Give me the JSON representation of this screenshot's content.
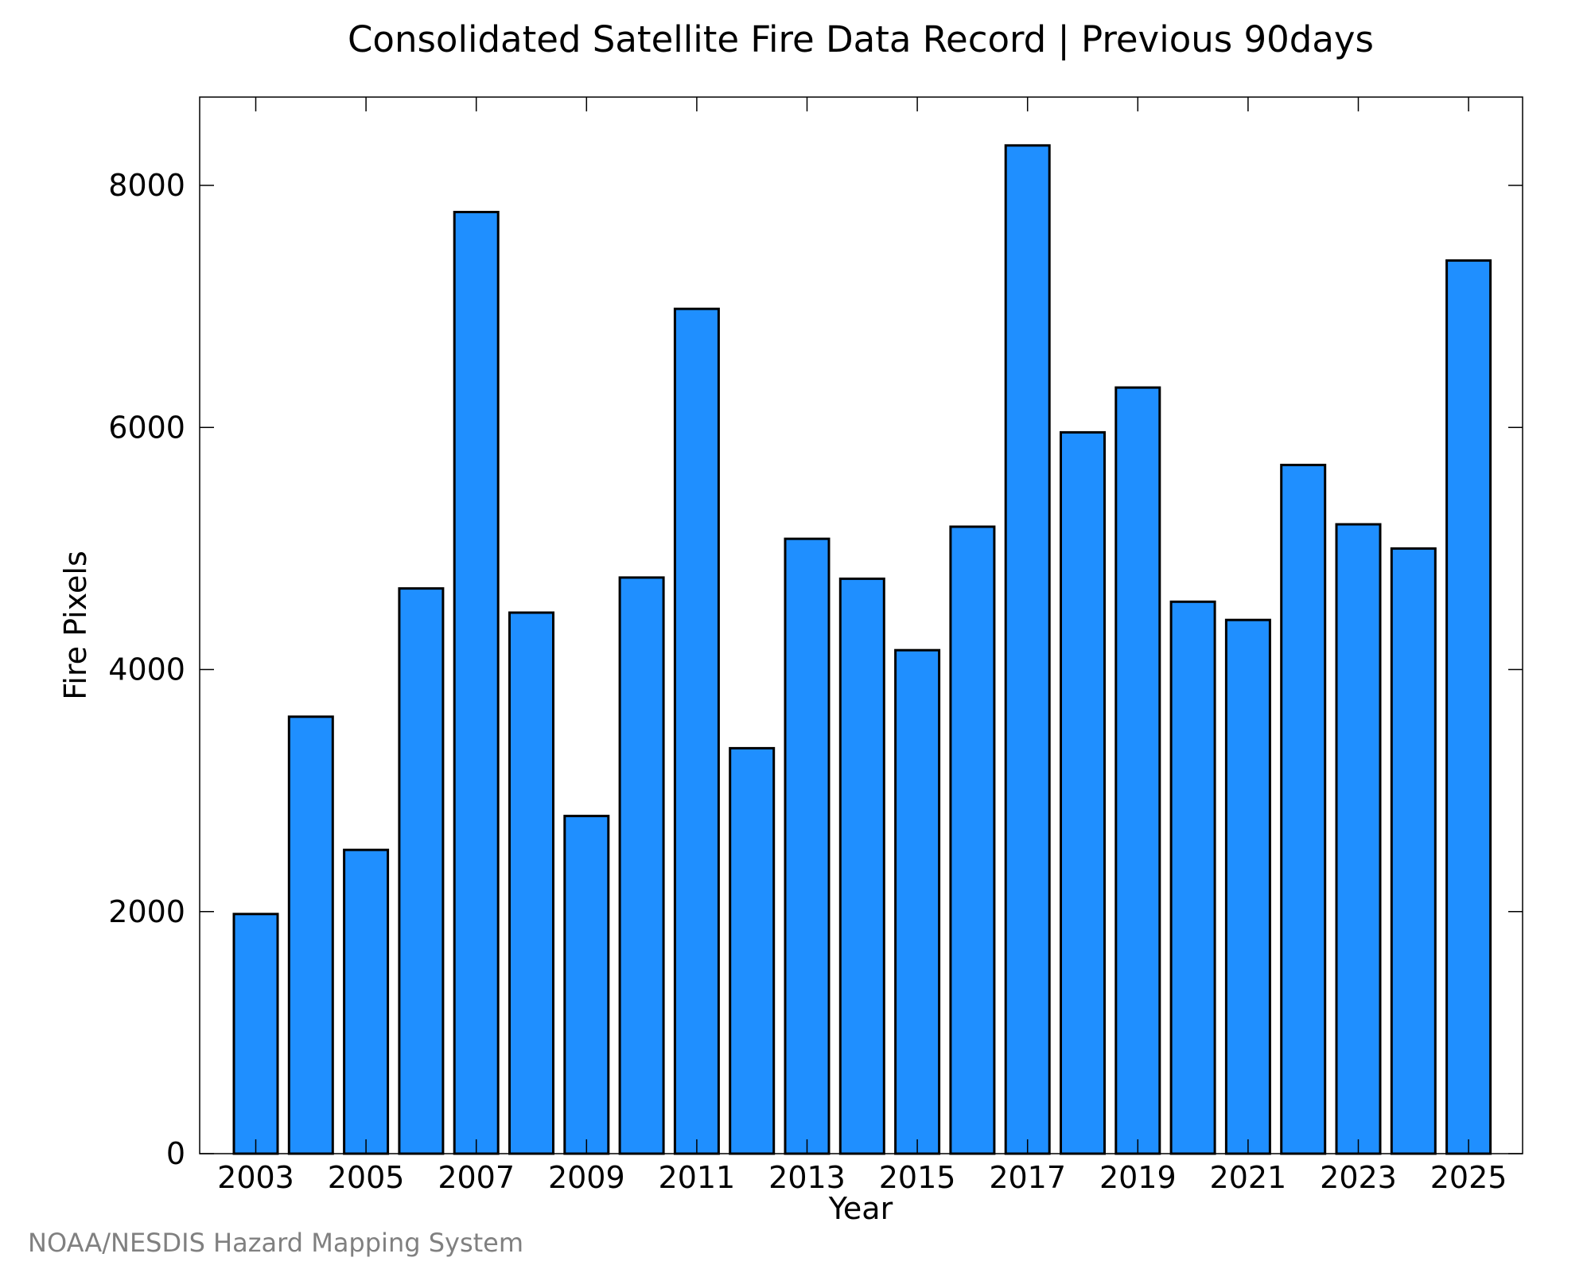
{
  "colors": {
    "bar_fill": "#1f8fff",
    "bar_stroke": "#000000",
    "axis": "#000000",
    "credit_text": "#808080"
  },
  "credit": "NOAA/NESDIS Hazard Mapping System",
  "chart_data": {
    "type": "bar",
    "title": "Consolidated Satellite Fire Data Record | Previous 90days",
    "xlabel": "Year",
    "ylabel": "Fire Pixels",
    "categories": [
      "2003",
      "2004",
      "2005",
      "2006",
      "2007",
      "2008",
      "2009",
      "2010",
      "2011",
      "2012",
      "2013",
      "2014",
      "2015",
      "2016",
      "2017",
      "2018",
      "2019",
      "2020",
      "2021",
      "2022",
      "2023",
      "2024",
      "2025"
    ],
    "values": [
      1980,
      3610,
      2510,
      4670,
      7780,
      4470,
      2790,
      4760,
      6980,
      3350,
      5080,
      4750,
      4160,
      5180,
      8330,
      5960,
      6330,
      4560,
      4410,
      5690,
      5200,
      5000,
      7380
    ],
    "x_tick_labels": [
      "2003",
      "2005",
      "2007",
      "2009",
      "2011",
      "2013",
      "2015",
      "2017",
      "2019",
      "2021",
      "2023",
      "2025"
    ],
    "y_ticks": [
      0,
      2000,
      4000,
      6000,
      8000
    ],
    "ylim": [
      0,
      8730
    ],
    "grid": false,
    "legend": "none"
  }
}
